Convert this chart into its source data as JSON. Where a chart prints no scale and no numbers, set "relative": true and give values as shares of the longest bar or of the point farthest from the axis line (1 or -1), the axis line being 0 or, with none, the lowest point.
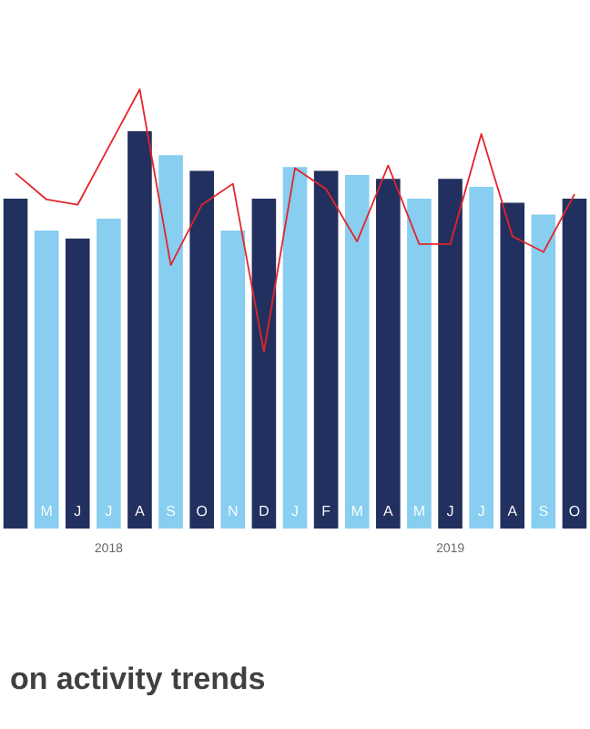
{
  "chart_data": [
    {
      "type": "bar",
      "title": "on activity trends",
      "relative": true,
      "categories": [
        null,
        "M",
        "J",
        "J",
        "A",
        "S",
        "O",
        "N",
        "D",
        "J",
        "F",
        "M",
        "A",
        "M",
        "J",
        "J",
        "A",
        "S",
        "O"
      ],
      "colors": [
        "#22305f",
        "#87cef0",
        "#22305f",
        "#87cef0",
        "#22305f",
        "#87cef0",
        "#22305f",
        "#87cef0",
        "#22305f",
        "#87cef0",
        "#22305f",
        "#87cef0",
        "#22305f",
        "#87cef0",
        "#22305f",
        "#87cef0",
        "#22305f",
        "#87cef0",
        "#22305f"
      ],
      "values": [
        0.83,
        0.75,
        0.73,
        0.78,
        1,
        0.94,
        0.9,
        0.75,
        0.83,
        0.91,
        0.9,
        0.89,
        0.88,
        0.83,
        0.88,
        0.86,
        0.82,
        0.79,
        0.83
      ],
      "annotations": [
        "2018",
        "2019"
      ]
    },
    {
      "type": "line",
      "relative": true,
      "categories": [
        null,
        null,
        null,
        null,
        null,
        null,
        null,
        null,
        null,
        null,
        null,
        null,
        null,
        null,
        null,
        null,
        null,
        null,
        null
      ],
      "color": "#e3242b",
      "values": [
        0.68,
        0.58,
        0.56,
        0.78,
        1,
        0.33,
        0.56,
        0.64,
        0,
        0.7,
        0.62,
        0.42,
        0.71,
        0.41,
        0.41,
        0.83,
        0.44,
        0.38,
        0.6
      ]
    }
  ]
}
